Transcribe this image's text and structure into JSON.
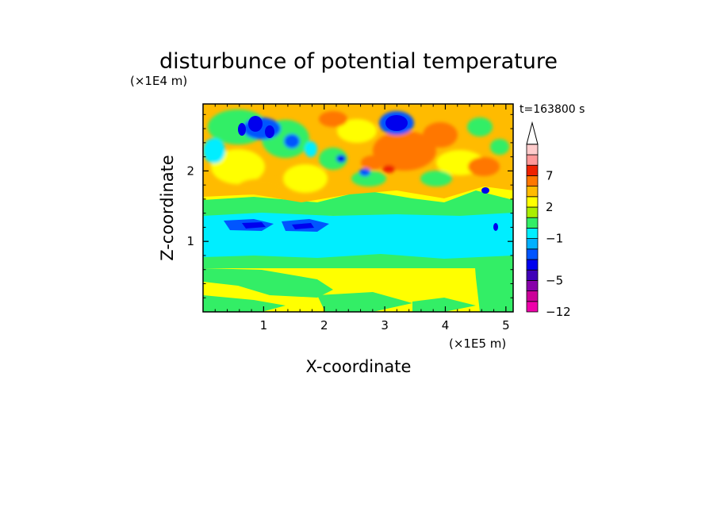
{
  "chart_data": {
    "type": "heatmap",
    "title": "disturbunce of potential temperature",
    "xlabel": "X-coordinate",
    "ylabel": "Z-coordinate",
    "x_unit": "(×1E5 m)",
    "y_unit": "(×1E4 m)",
    "time_label": "t=163800 s",
    "xlim": [
      0,
      5.12
    ],
    "ylim": [
      0,
      2.95
    ],
    "x_ticks": [
      "1",
      "2",
      "3",
      "4",
      "5"
    ],
    "y_ticks": [
      "1",
      "2"
    ],
    "colorbar": {
      "tick_labels": [
        "7",
        "2",
        "−1",
        "−5",
        "−12"
      ],
      "levels": [
        -12,
        -9,
        -7,
        -5,
        -4,
        -3,
        -2,
        -1,
        0,
        1,
        2,
        3,
        5,
        7,
        9,
        12
      ],
      "colors": [
        "#ee00aa",
        "#cc0099",
        "#8800aa",
        "#3f00b8",
        "#0000ee",
        "#0055ff",
        "#00b0ff",
        "#00eeff",
        "#33ee66",
        "#aaee00",
        "#ffff00",
        "#ffbb00",
        "#ff7700",
        "#ee2200",
        "#ff9999",
        "#ffcccc"
      ],
      "extend": "max"
    }
  }
}
